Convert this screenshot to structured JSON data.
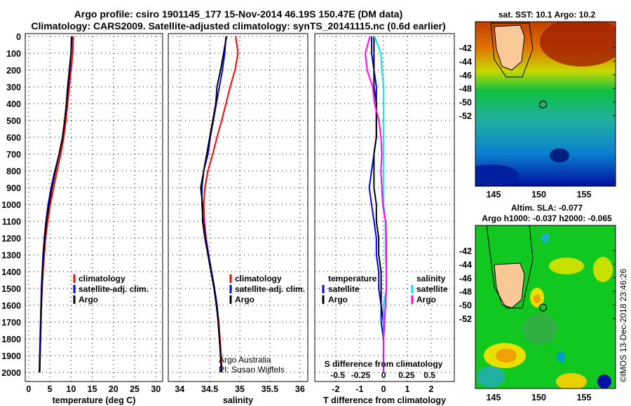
{
  "title": {
    "line1": "Argo profile: csiro 1901145_177 15-Nov-2014 46.19S 150.47E (DM data)",
    "line2": "Climatology: CARS2009. Satellite-adjusted climatology: synTS_20141115.nc (0.6d earlier)"
  },
  "colors": {
    "climatology": "#ff0000",
    "satellite": "#0000ff",
    "argo": "#000000",
    "sal_satellite": "#00e5ee",
    "sal_argo": "#ff00ff"
  },
  "chart_data": [
    {
      "type": "line",
      "xlabel": "temperature (deg C)",
      "ylabel": "",
      "xlim": [
        -0.8,
        31.6
      ],
      "ylim": [
        2055,
        0
      ],
      "xticks": [
        0,
        5,
        10,
        15,
        20,
        25,
        30
      ],
      "yticks": [
        0,
        100,
        200,
        300,
        400,
        500,
        600,
        700,
        800,
        900,
        1000,
        1100,
        1200,
        1300,
        1400,
        1500,
        1600,
        1700,
        1800,
        1900,
        2000
      ],
      "depth": [
        0,
        100,
        200,
        300,
        400,
        500,
        600,
        700,
        800,
        900,
        1000,
        1100,
        1200,
        1300,
        1400,
        1500,
        1600,
        1700,
        1800,
        1900,
        2000
      ],
      "legend": [
        "climatology",
        "satellite-adj. clim.",
        "Argo"
      ],
      "series": [
        {
          "name": "climatology",
          "color": "#ff0000",
          "values": [
            10.5,
            10.4,
            10,
            9.6,
            9.2,
            8.8,
            8.3,
            7.6,
            6.7,
            5.9,
            5.1,
            4.5,
            4.0,
            3.7,
            3.4,
            3.2,
            3.0,
            2.9,
            2.8,
            2.7,
            2.6
          ]
        },
        {
          "name": "satellite-adj. clim.",
          "color": "#0000ff",
          "values": [
            10.1,
            10.0,
            9.7,
            9.3,
            8.9,
            8.5,
            8.0,
            7.2,
            6.2,
            5.3,
            4.6,
            4.1,
            3.7,
            3.4,
            3.2,
            3.0,
            2.9,
            2.8,
            2.7,
            2.6,
            2.5
          ]
        },
        {
          "name": "Argo",
          "color": "#000000",
          "values": [
            10.2,
            10.0,
            9.6,
            9.2,
            8.9,
            8.5,
            8.0,
            7.2,
            6.3,
            5.5,
            4.8,
            4.2,
            3.8,
            3.5,
            3.3,
            3.1,
            3.0,
            2.9,
            2.8,
            2.7,
            2.6
          ]
        }
      ]
    },
    {
      "type": "line",
      "xlabel": "salinity",
      "xlim": [
        33.81,
        36.13
      ],
      "ylim": [
        2055,
        0
      ],
      "xticks": [
        34,
        34.5,
        35,
        35.5,
        36
      ],
      "depth": [
        0,
        100,
        200,
        300,
        400,
        500,
        600,
        700,
        800,
        900,
        1000,
        1100,
        1200,
        1300,
        1400,
        1500,
        1600,
        1700,
        1800,
        1900,
        2000
      ],
      "legend": [
        "climatology",
        "satellite-adj. clim.",
        "Argo"
      ],
      "annotation": [
        "Argo Australia",
        "PI: Susan Wijffels"
      ],
      "series": [
        {
          "name": "climatology",
          "color": "#ff0000",
          "values": [
            34.93,
            34.97,
            34.92,
            34.84,
            34.77,
            34.7,
            34.62,
            34.55,
            34.47,
            34.42,
            34.4,
            34.41,
            34.44,
            34.48,
            34.53,
            34.58,
            34.62,
            34.65,
            34.67,
            34.69,
            34.7
          ]
        },
        {
          "name": "satellite-adj. clim.",
          "color": "#0000ff",
          "values": [
            34.77,
            34.75,
            34.71,
            34.66,
            34.61,
            34.56,
            34.51,
            34.47,
            34.4,
            34.37,
            34.37,
            34.39,
            34.43,
            34.48,
            34.53,
            34.58,
            34.62,
            34.64,
            34.66,
            34.68,
            34.69
          ]
        },
        {
          "name": "Argo",
          "color": "#000000",
          "values": [
            34.78,
            34.73,
            34.68,
            34.62,
            34.6,
            34.55,
            34.5,
            34.45,
            34.4,
            34.35,
            34.38,
            34.38,
            34.42,
            34.47,
            34.52,
            34.57,
            34.61,
            34.64,
            34.66,
            34.68,
            34.7
          ]
        }
      ]
    },
    {
      "type": "line",
      "xlabel": "T difference from climatology",
      "xlabel2": "S difference from climatology",
      "xlim": [
        -2.88,
        2.97
      ],
      "xlim2": [
        -0.75,
        0.77
      ],
      "ylim": [
        2055,
        0
      ],
      "xticks": [
        -2,
        -1,
        0,
        1,
        2
      ],
      "xticks2": [
        "-0.5",
        "-0.25",
        "0",
        "0.25",
        "0.5"
      ],
      "xticks2_values": [
        -0.5,
        -0.25,
        0,
        0.25,
        0.5
      ],
      "depth": [
        0,
        100,
        200,
        300,
        400,
        500,
        600,
        700,
        800,
        900,
        1000,
        1100,
        1200,
        1300,
        1400,
        1500,
        1600,
        1700,
        1800,
        1900,
        2000
      ],
      "legend_t_title": "temperature",
      "legend_s_title": "salinity",
      "legend_t": [
        "satellite",
        "Argo"
      ],
      "legend_s": [
        "satellite",
        "Argo"
      ],
      "series": [
        {
          "name": "T satellite",
          "axis": "T",
          "color": "#0000ff",
          "values": [
            -0.5,
            -0.5,
            -0.4,
            -0.3,
            -0.3,
            -0.3,
            -0.3,
            -0.4,
            -0.5,
            -0.6,
            -0.5,
            -0.4,
            -0.3,
            -0.3,
            -0.2,
            -0.2,
            -0.1,
            -0.1,
            0,
            0,
            0
          ]
        },
        {
          "name": "T Argo",
          "axis": "T",
          "color": "#000000",
          "values": [
            -0.4,
            -0.4,
            -0.4,
            -0.4,
            -0.3,
            -0.3,
            -0.3,
            -0.4,
            -0.4,
            -0.4,
            -0.3,
            -0.3,
            -0.2,
            -0.2,
            -0.1,
            -0.1,
            -0.1,
            0,
            0,
            0,
            0
          ]
        },
        {
          "name": "S satellite",
          "axis": "S",
          "color": "#00e5ee",
          "values": [
            -0.1,
            -0.03,
            -0.02,
            0,
            0,
            0,
            0,
            0,
            0,
            0,
            0,
            0.02,
            0.02,
            0.02,
            0.03,
            0.03,
            0,
            0,
            0,
            0,
            0
          ]
        },
        {
          "name": "S Argo",
          "axis": "S",
          "color": "#ff00ff",
          "values": [
            -0.15,
            -0.2,
            -0.18,
            -0.12,
            -0.1,
            -0.05,
            -0.03,
            -0.02,
            -0.03,
            -0.02,
            -0.01,
            0.02,
            0.03,
            0.03,
            0.03,
            0.03,
            0.02,
            0.01,
            0,
            0,
            0
          ]
        }
      ]
    }
  ],
  "maps": {
    "sst": {
      "title": "sat. SST: 10.1 Argo: 10.2"
    },
    "sla": {
      "title1": "Altim. SLA: -0.077",
      "title2": "Argo h1000: -0.037 h2000: -0.065"
    },
    "lat_ticks": [
      "-42",
      "-44",
      "-46",
      "-48",
      "-50",
      "-52"
    ],
    "lon_ticks": [
      "145",
      "150",
      "155"
    ],
    "profile_lon": 150.47,
    "profile_lat": -46.19
  },
  "footer": "©IMOS 13-Dec-2018 23:46:26"
}
